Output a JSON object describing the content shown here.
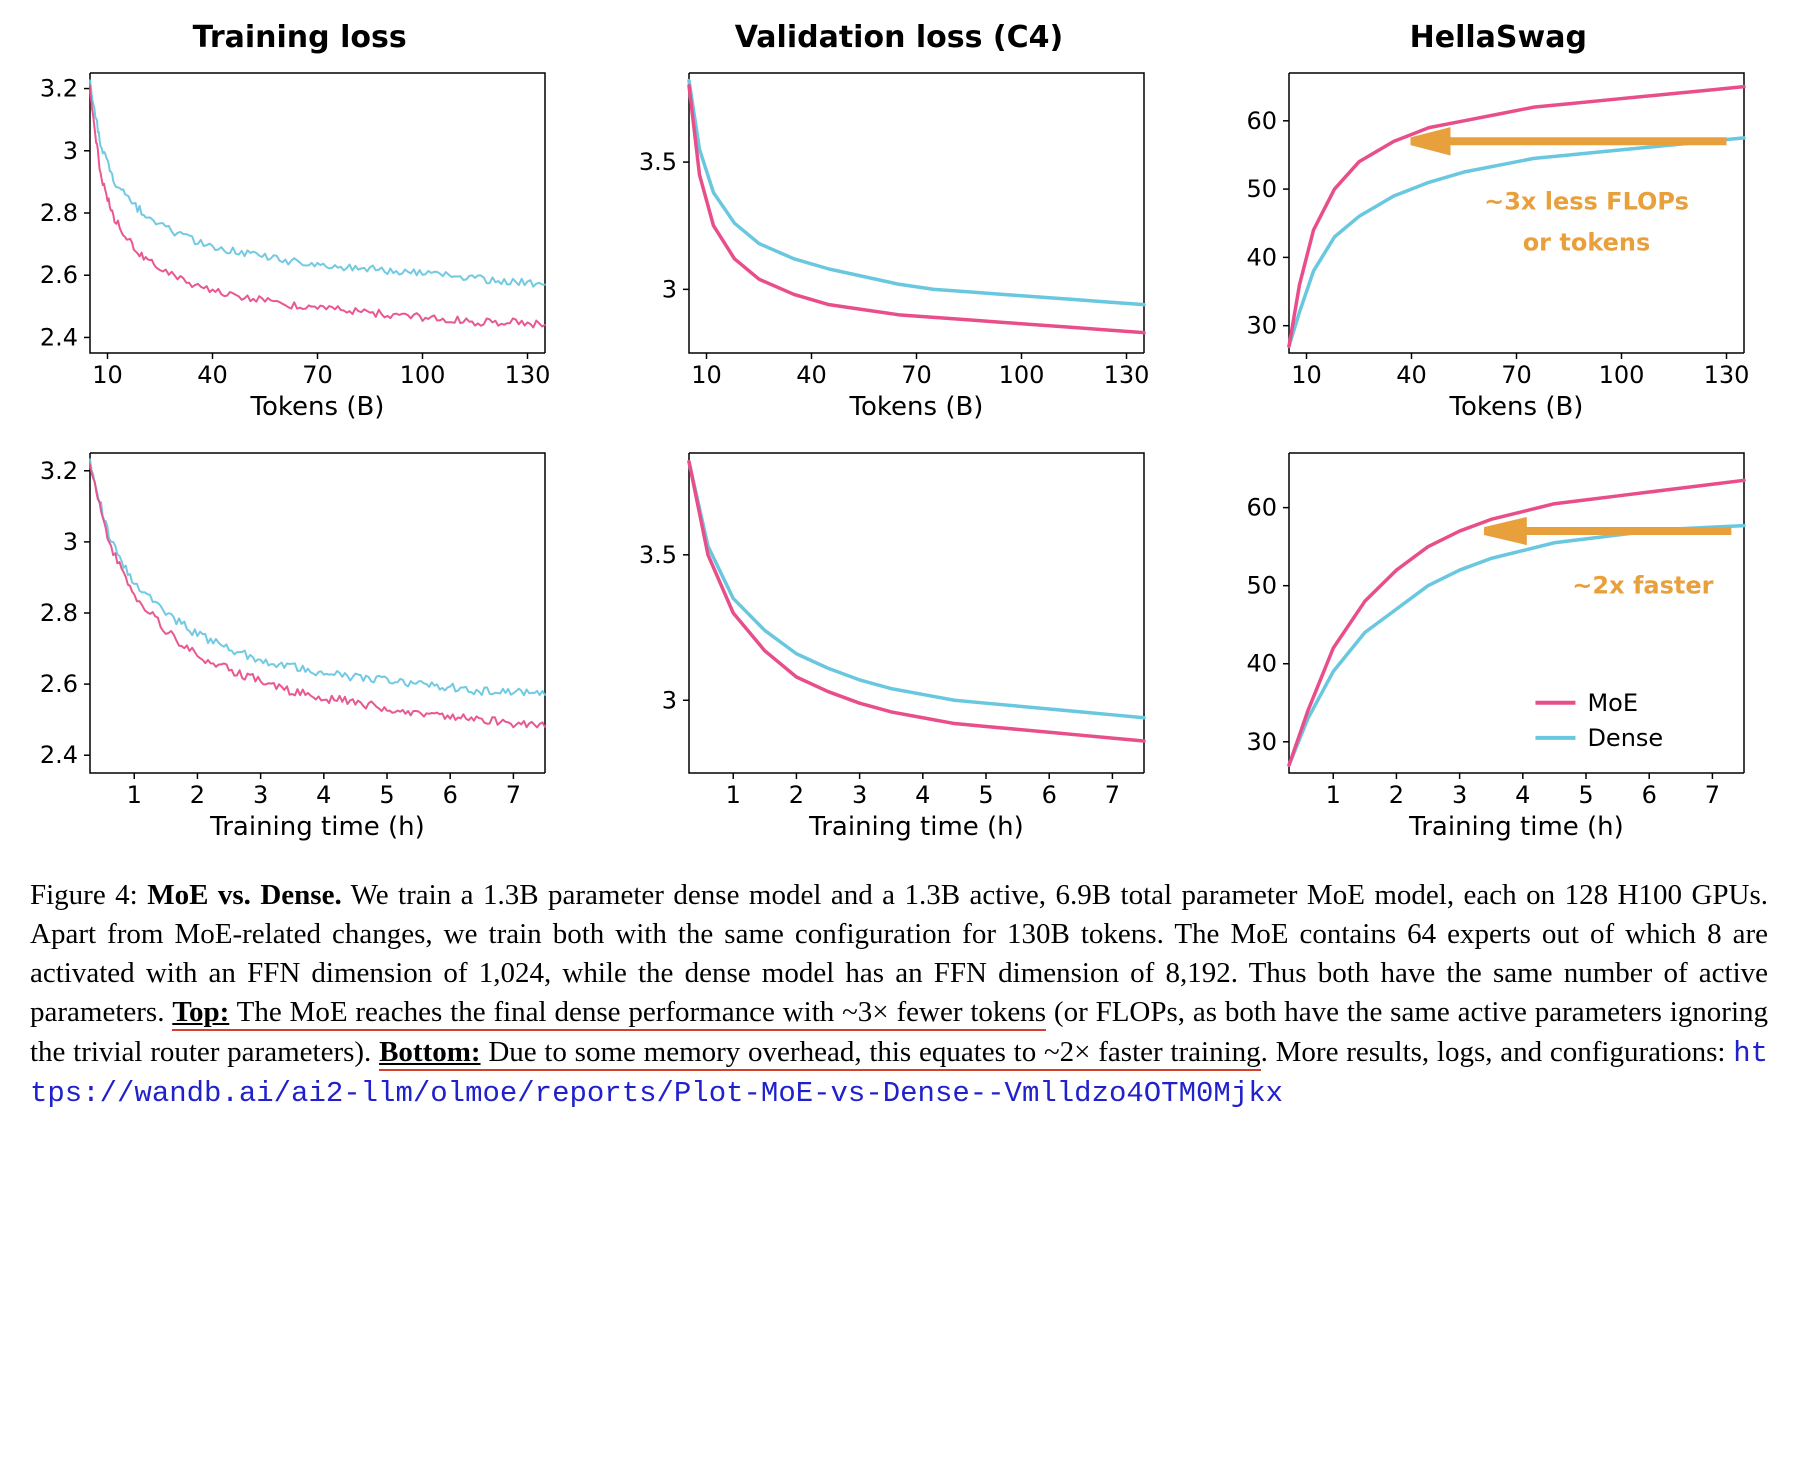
{
  "colors": {
    "moe": "#e84f8a",
    "dense": "#6ac7e0",
    "annotation": "#e8a03c",
    "underline": "#d04030",
    "link": "#2020cc",
    "background": "#ffffff",
    "axis": "#000000"
  },
  "line_width": {
    "smooth": 3.5,
    "noisy": 2.0
  },
  "panels": {
    "titles": [
      "Training loss",
      "Validation loss (C4)",
      "HellaSwag"
    ],
    "row1_xlabel": "Tokens (B)",
    "row2_xlabel": "Training time (h)",
    "row1_xticks": [
      10,
      40,
      70,
      100,
      130
    ],
    "row1_xlim": [
      5,
      135
    ],
    "row2_xticks": [
      1,
      2,
      3,
      4,
      5,
      6,
      7
    ],
    "row2_xlim": [
      0.3,
      7.5
    ],
    "loss_yticks": [
      2.4,
      2.6,
      2.8,
      3.0,
      3.2
    ],
    "loss_ylim": [
      2.35,
      3.25
    ],
    "val_yticks": [
      3.0,
      3.5
    ],
    "val_ylim": [
      2.75,
      3.85
    ],
    "hella_yticks": [
      30,
      40,
      50,
      60
    ],
    "hella_ylim": [
      26,
      67
    ]
  },
  "series_tokens": {
    "x": [
      5,
      8,
      12,
      18,
      25,
      35,
      45,
      55,
      65,
      75,
      85,
      95,
      105,
      115,
      125,
      135
    ],
    "train_moe": [
      3.2,
      2.92,
      2.78,
      2.68,
      2.62,
      2.57,
      2.54,
      2.52,
      2.5,
      2.49,
      2.48,
      2.47,
      2.46,
      2.45,
      2.45,
      2.44
    ],
    "train_dense": [
      3.22,
      3.02,
      2.9,
      2.82,
      2.76,
      2.71,
      2.68,
      2.66,
      2.64,
      2.63,
      2.62,
      2.61,
      2.6,
      2.59,
      2.58,
      2.57
    ],
    "val_moe": [
      3.8,
      3.45,
      3.25,
      3.12,
      3.04,
      2.98,
      2.94,
      2.92,
      2.9,
      2.89,
      2.88,
      2.87,
      2.86,
      2.85,
      2.84,
      2.83
    ],
    "val_dense": [
      3.82,
      3.55,
      3.38,
      3.26,
      3.18,
      3.12,
      3.08,
      3.05,
      3.02,
      3.0,
      2.99,
      2.98,
      2.97,
      2.96,
      2.95,
      2.94
    ],
    "hella_moe": [
      27,
      36,
      44,
      50,
      54,
      57,
      59,
      60,
      61,
      62,
      62.5,
      63,
      63.5,
      64,
      64.5,
      65
    ],
    "hella_dense": [
      27,
      32,
      38,
      43,
      46,
      49,
      51,
      52.5,
      53.5,
      54.5,
      55,
      55.5,
      56,
      56.5,
      57,
      57.5
    ]
  },
  "series_time": {
    "x": [
      0.3,
      0.6,
      1.0,
      1.5,
      2.0,
      2.5,
      3.0,
      3.5,
      4.0,
      4.5,
      5.0,
      5.5,
      6.0,
      6.5,
      7.0,
      7.5
    ],
    "train_moe": [
      3.22,
      3.0,
      2.85,
      2.75,
      2.68,
      2.64,
      2.61,
      2.58,
      2.56,
      2.55,
      2.53,
      2.52,
      2.51,
      2.5,
      2.49,
      2.48
    ],
    "train_dense": [
      3.22,
      3.02,
      2.88,
      2.8,
      2.74,
      2.7,
      2.67,
      2.65,
      2.63,
      2.62,
      2.61,
      2.6,
      2.59,
      2.58,
      2.58,
      2.57
    ],
    "val_moe": [
      3.82,
      3.5,
      3.3,
      3.17,
      3.08,
      3.03,
      2.99,
      2.96,
      2.94,
      2.92,
      2.91,
      2.9,
      2.89,
      2.88,
      2.87,
      2.86
    ],
    "val_dense": [
      3.82,
      3.53,
      3.35,
      3.24,
      3.16,
      3.11,
      3.07,
      3.04,
      3.02,
      3.0,
      2.99,
      2.98,
      2.97,
      2.96,
      2.95,
      2.94
    ],
    "hella_moe": [
      27,
      34,
      42,
      48,
      52,
      55,
      57,
      58.5,
      59.5,
      60.5,
      61,
      61.5,
      62,
      62.5,
      63,
      63.5
    ],
    "hella_dense": [
      27,
      33,
      39,
      44,
      47,
      50,
      52,
      53.5,
      54.5,
      55.5,
      56,
      56.5,
      57,
      57.3,
      57.5,
      57.7
    ]
  },
  "annotations": {
    "top": "~3x less FLOPs\nor tokens",
    "bottom": "~2x faster"
  },
  "legend": {
    "moe": "MoE",
    "dense": "Dense"
  },
  "caption": {
    "fig_label": "Figure 4:",
    "heading": "MoE vs. Dense.",
    "body1": "We train a 1.3B parameter dense model and a 1.3B active, 6.9B total parameter MoE model, each on 128 H100 GPUs. Apart from MoE-related changes, we train both with the same configuration for 130B tokens. The MoE contains 64 experts out of which 8 are activated with an FFN dimension of 1,024, while the dense model has an FFN dimension of 8,192. Thus both have the same number of active parameters.",
    "top_label": "Top:",
    "top_ul": "The MoE reaches the final dense performance with ~3× fewer tokens",
    "top_rest": "(or FLOPs, as both have the same active parameters ignoring the trivial router parameters).",
    "bottom_label": "Bottom:",
    "bottom_ul": "Due to some memory overhead, this equates to ~2× faster training",
    "bottom_rest": ". More results, logs, and configurations:",
    "url": "https://wandb.ai/ai2-llm/olmoe/reports/Plot-MoE-vs-Dense--Vmlldzo4OTM0Mjkx"
  }
}
